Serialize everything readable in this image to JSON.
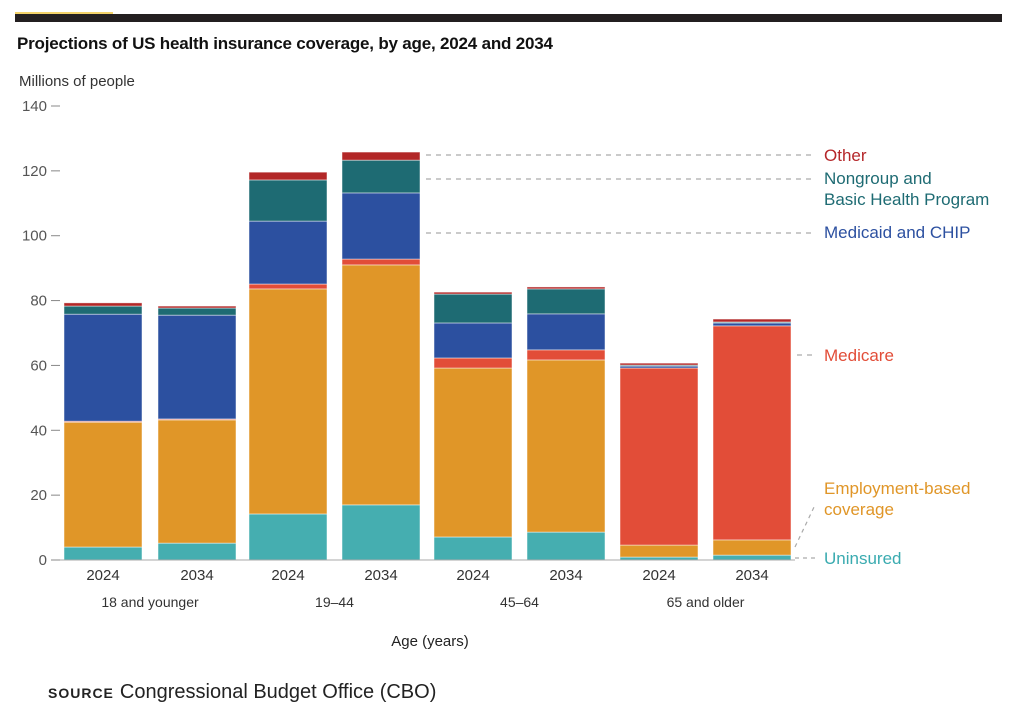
{
  "chart_data": {
    "type": "bar",
    "stacked": true,
    "title": "Projections of US health insurance coverage, by age, 2024 and 2034",
    "ylabel": "Millions of people",
    "xlabel": "Age (years)",
    "ylim": [
      0,
      140
    ],
    "yticks": [
      0,
      20,
      40,
      60,
      80,
      100,
      120,
      140
    ],
    "grid": false,
    "legend": "right, inline labels",
    "groups": [
      "18 and younger",
      "19–44",
      "45–64",
      "65 and older"
    ],
    "categories": [
      "2024",
      "2034",
      "2024",
      "2034",
      "2024",
      "2034",
      "2024",
      "2034"
    ],
    "series": [
      {
        "name": "Uninsured",
        "color": "#45aeb0",
        "label_color": "#3aabb0",
        "values": [
          4,
          5.2,
          14.2,
          17,
          7.1,
          8.6,
          0.9,
          1.5
        ]
      },
      {
        "name": "Employment-based coverage",
        "color": "#e09628",
        "label_color": "#e09628",
        "values": [
          38.5,
          38,
          69.4,
          74,
          52.1,
          53.1,
          3.7,
          4.7
        ]
      },
      {
        "name": "Medicare",
        "color": "#e24d38",
        "label_color": "#e24d38",
        "values": [
          0.3,
          0.3,
          1.5,
          1.8,
          3.1,
          3.1,
          54.6,
          66
        ]
      },
      {
        "name": "Medicaid and CHIP",
        "color": "#2c50a0",
        "label_color": "#2c50a0",
        "values": [
          33,
          32,
          19.4,
          20.4,
          10.8,
          11.1,
          0.6,
          0.9
        ]
      },
      {
        "name": "Nongroup and Basic Health Program",
        "color": "#1e6b73",
        "label_color": "#1e6b73",
        "values": [
          2.5,
          2.2,
          12.7,
          10.1,
          8.9,
          7.7,
          0.3,
          0.3
        ]
      },
      {
        "name": "Other",
        "color": "#b22727",
        "label_color": "#b5272a",
        "values": [
          1,
          0.6,
          2.4,
          2.5,
          0.6,
          0.6,
          0.6,
          0.9
        ]
      }
    ],
    "legend_lines": {
      "Uninsured": [
        "Uninsured"
      ],
      "Employment-based coverage": [
        "Employment-based",
        "coverage"
      ],
      "Medicare": [
        "Medicare"
      ],
      "Medicaid and CHIP": [
        "Medicaid and CHIP"
      ],
      "Nongroup and Basic Health Program": [
        "Nongroup and",
        "Basic Health Program"
      ],
      "Other": [
        "Other"
      ]
    }
  },
  "source": {
    "label": "SOURCE",
    "text": "Congressional Budget Office (CBO)"
  }
}
